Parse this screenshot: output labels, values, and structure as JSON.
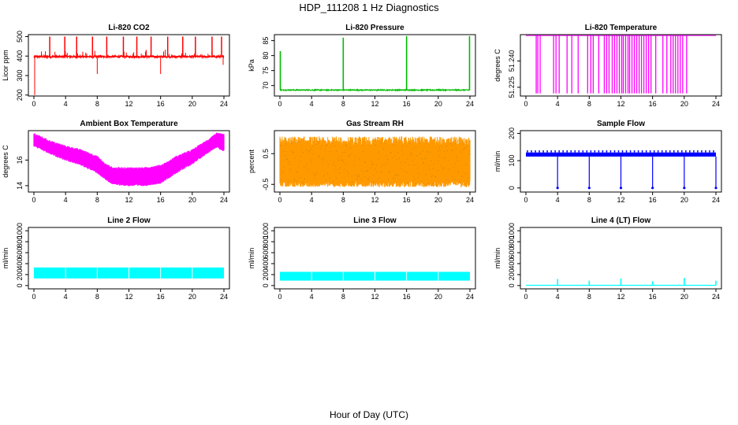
{
  "figure": {
    "title": "HDP_111208  1 Hz Diagnostics",
    "xlabel": "Hour of Day (UTC)"
  },
  "chart_data": [
    {
      "type": "line",
      "title": "Li-820 CO2",
      "ylabel": "Licor ppm",
      "color": "#ff0000",
      "xlim": [
        0,
        24
      ],
      "ylim": [
        195,
        510
      ],
      "xticks": [
        "0",
        "4",
        "8",
        "12",
        "16",
        "20",
        "24"
      ],
      "yticks": [
        "200",
        "300",
        "400",
        "500"
      ],
      "baseline": 397,
      "spikes_up": [
        2,
        3.9,
        5.4,
        7.4,
        9.2,
        11.3,
        13,
        14.8,
        16.9,
        18.8,
        20.4,
        22.5,
        23.7
      ],
      "spike_up_value": 500,
      "spikes_down": [
        [
          0.1,
          200
        ],
        [
          8,
          308
        ],
        [
          16,
          308
        ],
        [
          23.9,
          355
        ]
      ]
    },
    {
      "type": "line",
      "title": "Li-820 Pressure",
      "ylabel": "kPa",
      "color": "#00bb00",
      "xlim": [
        0,
        24
      ],
      "ylim": [
        66.5,
        87
      ],
      "xticks": [
        "0",
        "4",
        "8",
        "12",
        "16",
        "20",
        "24"
      ],
      "yticks": [
        "70",
        "75",
        "80",
        "85"
      ],
      "baseline": 68.5,
      "spikes_up": [
        [
          0.05,
          81.5
        ],
        [
          8,
          86
        ],
        [
          16,
          86.5
        ],
        [
          23.95,
          86.5
        ]
      ]
    },
    {
      "type": "line",
      "title": "Li-820 Temperature",
      "ylabel": "degrees C",
      "color": "#ff00ff",
      "xlim": [
        0,
        24
      ],
      "ylim": [
        51.22,
        51.255
      ],
      "xticks": [
        "0",
        "4",
        "8",
        "12",
        "16",
        "20",
        "24"
      ],
      "yticks": [
        "51.225",
        "51.240"
      ],
      "baseline": 51.2545,
      "low": 51.2215,
      "drop_hours": [
        1.3,
        1.5,
        1.8,
        3.5,
        3.8,
        4.2,
        5.2,
        5.8,
        6.6,
        7.8,
        8.2,
        8.5,
        9.2,
        9.9,
        10.2,
        10.5,
        10.9,
        11.2,
        11.5,
        11.8,
        12.1,
        12.3,
        12.6,
        12.9,
        13.1,
        13.4,
        13.7,
        14.0,
        14.3,
        14.6,
        14.9,
        15.2,
        15.5,
        15.8,
        16.4,
        17.3,
        17.8,
        18.3,
        18.6,
        18.9,
        19.2,
        19.5,
        19.8,
        20.3
      ]
    },
    {
      "type": "area",
      "title": "Ambient Box Temperature",
      "ylabel": "degrees C",
      "color": "#ff00ff",
      "xlim": [
        0,
        24
      ],
      "ylim": [
        13.5,
        18.3
      ],
      "xticks": [
        "0",
        "4",
        "8",
        "12",
        "16",
        "20",
        "24"
      ],
      "yticks": [
        "14",
        "16"
      ],
      "x": [
        0,
        2,
        4,
        6,
        8,
        9,
        10,
        12,
        14,
        16,
        17,
        18,
        20,
        22,
        23,
        24
      ],
      "upper": [
        18.0,
        17.4,
        17.0,
        16.7,
        16.2,
        15.6,
        15.3,
        15.3,
        15.3,
        15.5,
        15.8,
        16.2,
        16.7,
        17.5,
        18.0,
        17.9
      ],
      "lower": [
        17.2,
        16.6,
        16.1,
        15.7,
        15.1,
        14.6,
        14.2,
        14.1,
        14.1,
        14.3,
        14.7,
        15.1,
        15.8,
        16.7,
        17.1,
        16.8
      ]
    },
    {
      "type": "area",
      "title": "Gas Stream RH",
      "ylabel": "percent",
      "color": "#ff9900",
      "overlay_color": "#aa7700",
      "xlim": [
        0,
        24
      ],
      "ylim": [
        -0.75,
        1.25
      ],
      "xticks": [
        "0",
        "4",
        "8",
        "12",
        "16",
        "20",
        "24"
      ],
      "yticks": [
        "-0.5",
        "0.5"
      ],
      "upper": 0.85,
      "lower": -0.45
    },
    {
      "type": "line",
      "title": "Sample Flow",
      "ylabel": "ml/min",
      "color": "#0000ff",
      "xlim": [
        0,
        24
      ],
      "ylim": [
        -15,
        210
      ],
      "xticks": [
        "0",
        "4",
        "8",
        "12",
        "16",
        "20",
        "24"
      ],
      "yticks": [
        "0",
        "100",
        "200"
      ],
      "baseline": 115,
      "top": 130,
      "drop_hours": [
        4,
        8,
        12,
        16,
        20,
        24
      ],
      "drop_value": 0
    },
    {
      "type": "area",
      "title": "Line 2 Flow",
      "ylabel": "ml/min",
      "color": "#00ffff",
      "xlim": [
        0,
        24
      ],
      "ylim": [
        -60,
        1060
      ],
      "xticks": [
        "0",
        "4",
        "8",
        "12",
        "16",
        "20",
        "24"
      ],
      "yticks": [
        "0",
        "200",
        "400",
        "600",
        "800",
        "1000"
      ],
      "upper": 330,
      "lower": 130,
      "gaps": [
        4,
        8,
        12,
        16,
        20
      ]
    },
    {
      "type": "area",
      "title": "Line 3 Flow",
      "ylabel": "ml/min",
      "color": "#00ffff",
      "xlim": [
        0,
        24
      ],
      "ylim": [
        -60,
        1060
      ],
      "xticks": [
        "0",
        "4",
        "8",
        "12",
        "16",
        "20",
        "24"
      ],
      "yticks": [
        "0",
        "200",
        "400",
        "600",
        "800",
        "1000"
      ],
      "upper": 250,
      "lower": 90,
      "gaps": [
        4,
        8,
        12,
        16,
        20
      ]
    },
    {
      "type": "line",
      "title": "Line 4 (LT) Flow",
      "ylabel": "ml/min",
      "color": "#00ffff",
      "xlim": [
        0,
        24
      ],
      "ylim": [
        -60,
        1060
      ],
      "xticks": [
        "0",
        "4",
        "8",
        "12",
        "16",
        "20",
        "24"
      ],
      "yticks": [
        "0",
        "200",
        "400",
        "600",
        "800",
        "1000"
      ],
      "baseline": 5,
      "spikes_up": [
        [
          4,
          120
        ],
        [
          8,
          90
        ],
        [
          12,
          130
        ],
        [
          16,
          80
        ],
        [
          20,
          140
        ],
        [
          24,
          90
        ]
      ]
    }
  ]
}
